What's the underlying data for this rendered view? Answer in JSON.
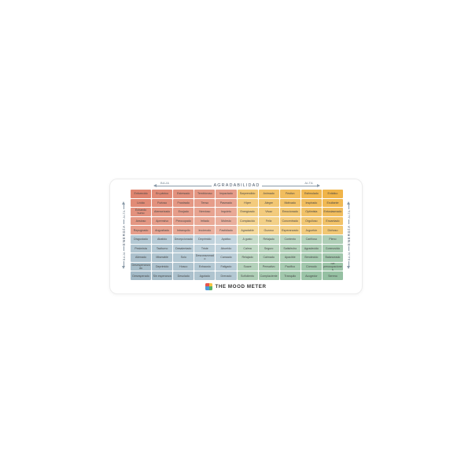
{
  "axes": {
    "top": {
      "label": "AGRADABILIDAD",
      "left_end": "BAJA",
      "right_end": "ALTA"
    },
    "left": {
      "label": "ENERGÍA",
      "top_end": "ALTA",
      "bottom_end": "BAJA"
    },
    "right": {
      "label": "ENERGÍA",
      "top_end": "ALTA",
      "bottom_end": "BAJA"
    }
  },
  "footer": {
    "brand": "THE MOOD METER"
  },
  "colors": {
    "red_corner": "#df8570",
    "red_center": "#ecb5a3",
    "yellow_corner": "#f0b449",
    "yellow_center": "#f4d99c",
    "blue_corner": "#a2b9c6",
    "blue_center": "#c4d6df",
    "green_corner": "#95c0a2",
    "green_center": "#c6dcca",
    "logo_red": "#e8544e",
    "logo_yellow": "#f6c343",
    "logo_blue": "#4d9bd8",
    "logo_green": "#58b368"
  },
  "chart_data": {
    "type": "heatmap",
    "title": "THE MOOD METER",
    "xlabel": "AGRADABILIDAD (BAJA → ALTA)",
    "ylabel": "ENERGÍA (BAJA abajo → ALTA arriba)",
    "grid": "10x10",
    "quadrants": {
      "rojo": "alta energía / baja agradabilidad (arriba izquierda)",
      "amarillo": "alta energía / alta agradabilidad (arriba derecha)",
      "azul": "baja energía / baja agradabilidad (abajo izquierda)",
      "verde": "baja energía / alta agradabilidad (abajo derecha)"
    },
    "rows": [
      [
        "Enfurecido",
        "En pánico",
        "Estresado",
        "Tembloroso",
        "Impactado",
        "Sorprendido",
        "Animado",
        "Festivo",
        "Estimulado",
        "Extático"
      ],
      [
        "Lívido",
        "Furioso",
        "Frustrado",
        "Tenso",
        "Pasmado",
        "Híper",
        "Alegre",
        "Motivado",
        "Inspirado",
        "Exultante"
      ],
      [
        "Echando humo",
        "Atemorizado",
        "Enojado",
        "Nervioso",
        "Inquieto",
        "Energizado",
        "Vivaz",
        "Emocionado",
        "Optimista",
        "Entusiasmado"
      ],
      [
        "Ansioso",
        "Aprensivo",
        "Preocupado",
        "Irritado",
        "Molesto",
        "Complacido",
        "Feliz",
        "Concentrado",
        "Orgulloso",
        "Encantado"
      ],
      [
        "Repugnado",
        "Angustiado",
        "Intranquilo",
        "Incómodo",
        "Fastidiado",
        "Agradable",
        "Gozoso",
        "Esperanzado",
        "Juguetón",
        "Dichoso"
      ],
      [
        "Disgustado",
        "Abatido",
        "Decepcionado",
        "Deprimido",
        "Apático",
        "A gusto",
        "Relajado",
        "Contento",
        "Cariñoso",
        "Pleno"
      ],
      [
        "Pesimista",
        "Taciturno",
        "Desalentado",
        "Triste",
        "Aburrido",
        "Calma",
        "Seguro",
        "Satisfecho",
        "Agradecido",
        "Conmovido"
      ],
      [
        "Alienado",
        "Miserable",
        "Solo",
        "Descorazonado",
        "Cansado",
        "Relajado",
        "Calmado",
        "Apacible",
        "Bendecido",
        "Balanceado"
      ],
      [
        "Desesperanzado",
        "Deprimido",
        "Hosco",
        "Exhausto",
        "Fatigado",
        "Suave",
        "Pensativo",
        "Pacífico",
        "Cómodo",
        "Sin preocupaciones"
      ],
      [
        "Desesperado",
        "Sin esperanza",
        "Desolado",
        "Agotado",
        "Drenado",
        "Soñoliento",
        "Complaciente",
        "Tranquilo",
        "Acogedor",
        "Sereno"
      ]
    ]
  }
}
